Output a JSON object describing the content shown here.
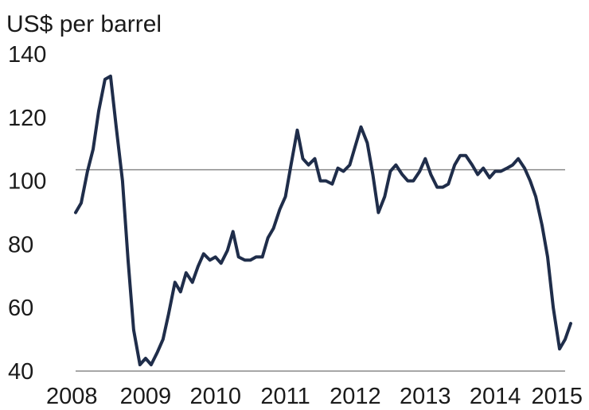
{
  "chart_data": {
    "type": "line",
    "title": "",
    "ylabel": "US$ per barrel",
    "xlabel": "",
    "ylim": [
      40,
      140
    ],
    "xlim": [
      2008,
      2015
    ],
    "y_ticks": [
      40,
      60,
      80,
      100,
      120,
      140
    ],
    "x_ticks": [
      2008,
      2009,
      2010,
      2011,
      2012,
      2013,
      2014,
      2015
    ],
    "grid": false,
    "reference_line": {
      "y": 103.5
    },
    "series": [
      {
        "color": "#1f2d4a",
        "x": [
          2008.0,
          2008.08,
          2008.17,
          2008.25,
          2008.33,
          2008.42,
          2008.5,
          2008.58,
          2008.67,
          2008.75,
          2008.83,
          2008.92,
          2009.0,
          2009.08,
          2009.17,
          2009.25,
          2009.33,
          2009.42,
          2009.5,
          2009.58,
          2009.67,
          2009.75,
          2009.83,
          2009.92,
          2010.0,
          2010.08,
          2010.17,
          2010.25,
          2010.33,
          2010.42,
          2010.5,
          2010.58,
          2010.67,
          2010.75,
          2010.83,
          2010.92,
          2011.0,
          2011.08,
          2011.17,
          2011.25,
          2011.33,
          2011.42,
          2011.5,
          2011.58,
          2011.67,
          2011.75,
          2011.83,
          2011.92,
          2012.0,
          2012.08,
          2012.17,
          2012.25,
          2012.33,
          2012.42,
          2012.5,
          2012.58,
          2012.67,
          2012.75,
          2012.83,
          2012.92,
          2013.0,
          2013.08,
          2013.17,
          2013.25,
          2013.33,
          2013.42,
          2013.5,
          2013.58,
          2013.67,
          2013.75,
          2013.83,
          2013.92,
          2014.0,
          2014.08,
          2014.17,
          2014.25,
          2014.33,
          2014.42,
          2014.5,
          2014.58,
          2014.67,
          2014.75,
          2014.83,
          2014.92,
          2015.0,
          2015.08
        ],
        "y": [
          90,
          93,
          103,
          110,
          122,
          132,
          133,
          117,
          100,
          75,
          53,
          42,
          44,
          42,
          46,
          50,
          58,
          68,
          65,
          71,
          68,
          73,
          77,
          75,
          76,
          74,
          78,
          84,
          76,
          75,
          75,
          76,
          76,
          82,
          85,
          91,
          95,
          105,
          116,
          107,
          105,
          107,
          100,
          100,
          99,
          104,
          103,
          105,
          111,
          117,
          112,
          102,
          90,
          95,
          103,
          105,
          102,
          100,
          100,
          103,
          107,
          102,
          98,
          98,
          99,
          105,
          108,
          108,
          105,
          102,
          104,
          101,
          103,
          103,
          104,
          105,
          107,
          104,
          100,
          95,
          86,
          76,
          60,
          47,
          50,
          55
        ]
      }
    ]
  }
}
